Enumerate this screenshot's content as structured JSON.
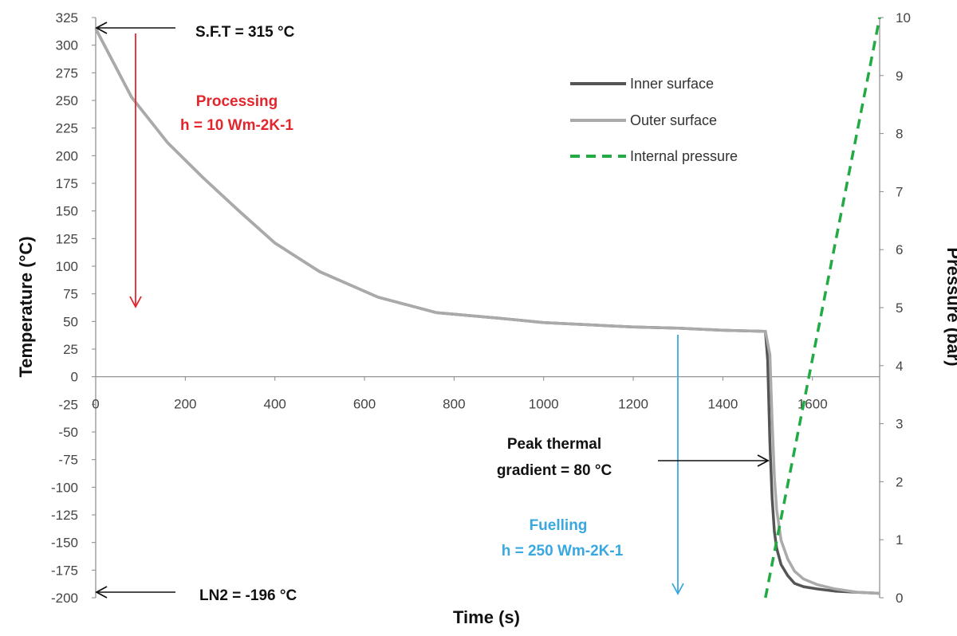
{
  "chart_data": {
    "type": "line",
    "xlabel": "Time (s)",
    "ylabel": "Temperature (°C)",
    "y2label": "Pressure (bar)",
    "xlim": [
      0,
      1750
    ],
    "ylim": [
      -200,
      325
    ],
    "y2lim": [
      0,
      10
    ],
    "xticks": [
      0,
      200,
      400,
      600,
      800,
      1000,
      1200,
      1400,
      1600
    ],
    "yticks": [
      -200,
      -175,
      -150,
      -125,
      -100,
      -75,
      -50,
      -25,
      0,
      25,
      50,
      75,
      100,
      125,
      150,
      175,
      200,
      225,
      250,
      275,
      300,
      325
    ],
    "y2ticks": [
      0,
      1,
      2,
      3,
      4,
      5,
      6,
      7,
      8,
      9,
      10
    ],
    "grid": false,
    "legend_position": "top-right",
    "series": [
      {
        "name": "Inner surface",
        "axis": "left",
        "color": "#555555",
        "dash": "solid",
        "x": [
          0,
          80,
          160,
          240,
          320,
          400,
          500,
          630,
          760,
          900,
          1000,
          1100,
          1200,
          1300,
          1400,
          1495,
          1500,
          1505,
          1510,
          1515,
          1520,
          1530,
          1545,
          1560,
          1580,
          1610,
          1650,
          1700,
          1750
        ],
        "y": [
          315,
          253,
          212,
          180,
          150,
          121,
          95,
          72,
          58,
          53,
          49,
          47,
          45,
          44,
          42,
          41,
          15,
          -60,
          -110,
          -140,
          -155,
          -170,
          -180,
          -187,
          -190,
          -192,
          -194,
          -195,
          -196
        ]
      },
      {
        "name": "Outer surface",
        "axis": "left",
        "color": "#aaaaaa",
        "dash": "solid",
        "x": [
          0,
          80,
          160,
          240,
          320,
          400,
          500,
          630,
          760,
          900,
          1000,
          1100,
          1200,
          1300,
          1400,
          1495,
          1505,
          1510,
          1515,
          1520,
          1530,
          1545,
          1560,
          1580,
          1610,
          1650,
          1700,
          1750
        ],
        "y": [
          315,
          253,
          212,
          180,
          150,
          121,
          95,
          72,
          58,
          53,
          49,
          47,
          45,
          44,
          42,
          41,
          20,
          -40,
          -90,
          -120,
          -148,
          -165,
          -176,
          -183,
          -188,
          -192,
          -195,
          -196
        ]
      },
      {
        "name": "Internal pressure",
        "axis": "right",
        "color": "#22aa44",
        "dash": "dashed",
        "x": [
          1495,
          1750
        ],
        "y": [
          0,
          10
        ]
      }
    ],
    "annotations": [
      {
        "text": "S.F.T = 315 °C",
        "color": "#111111"
      },
      {
        "text": "Processing",
        "color": "#e3262e"
      },
      {
        "text": "h = 10 Wm-2K-1",
        "color": "#e3262e"
      },
      {
        "text": "Peak thermal",
        "color": "#111111"
      },
      {
        "text": "gradient = 80 °C",
        "color": "#111111"
      },
      {
        "text": "Fuelling",
        "color": "#3aa8e0"
      },
      {
        "text": "h = 250 Wm-2K-1",
        "color": "#3aa8e0"
      },
      {
        "text": "LN2 = -196 °C",
        "color": "#111111"
      }
    ]
  }
}
